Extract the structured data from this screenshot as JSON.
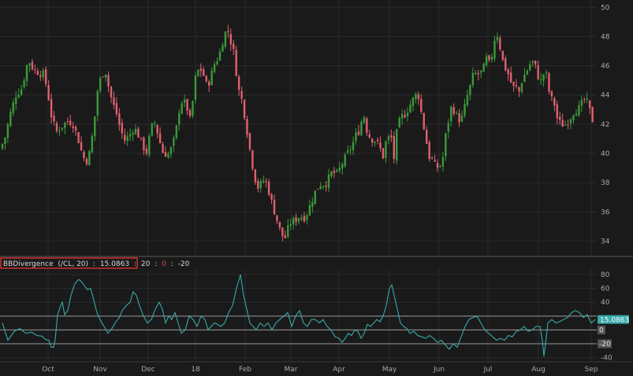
{
  "colors": {
    "background": "#1a1a1a",
    "grid": "#2a2a2a",
    "up": "#3a9a3a",
    "down": "#e06070",
    "indicator": "#3aa8a8",
    "level_line": "#9a9a9a",
    "study_box": "#d03030",
    "current_value_bg": "#3aa8a8"
  },
  "study": {
    "name": "BBDivergence",
    "params": "(/CL, 20)",
    "values": [
      "15.0863",
      "20",
      "0",
      "-20"
    ],
    "value_colors": [
      "#d8d8d8",
      "#d8d8d8",
      "#e04040",
      "#d8d8d8"
    ]
  },
  "chart_data": [
    {
      "type": "candlestick",
      "x_labels": [
        "Oct",
        "Nov",
        "Dec",
        "18",
        "Feb",
        "Mar",
        "Apr",
        "May",
        "Jun",
        "Jul",
        "Aug",
        "Sep"
      ],
      "y_ticks": [
        34,
        36,
        38,
        40,
        42,
        44,
        46,
        48,
        50
      ],
      "ylim": [
        33,
        50.5
      ],
      "grid": true,
      "close_path": [
        [
          0,
          40.3
        ],
        [
          6,
          41.0
        ],
        [
          13,
          42.7
        ],
        [
          20,
          44.0
        ],
        [
          28,
          44.5
        ],
        [
          33,
          45.8
        ],
        [
          36,
          46.4
        ],
        [
          43,
          45.7
        ],
        [
          51,
          45.5
        ],
        [
          56,
          45.4
        ],
        [
          61,
          44.0
        ],
        [
          66,
          42.3
        ],
        [
          72,
          41.5
        ],
        [
          79,
          41.9
        ],
        [
          85,
          42.2
        ],
        [
          92,
          42.1
        ],
        [
          98,
          41.2
        ],
        [
          103,
          40.2
        ],
        [
          107,
          39.6
        ],
        [
          110,
          39.5
        ],
        [
          114,
          40.1
        ],
        [
          119,
          41.9
        ],
        [
          124,
          44.4
        ],
        [
          129,
          45.4
        ],
        [
          134,
          45.6
        ],
        [
          138,
          44.5
        ],
        [
          142,
          43.6
        ],
        [
          148,
          42.7
        ],
        [
          153,
          41.6
        ],
        [
          158,
          40.9
        ],
        [
          164,
          41.2
        ],
        [
          170,
          41.8
        ],
        [
          176,
          41.2
        ],
        [
          181,
          40.5
        ],
        [
          186,
          40.1
        ],
        [
          191,
          41.5
        ],
        [
          195,
          42.3
        ],
        [
          200,
          41.4
        ],
        [
          206,
          40.1
        ],
        [
          213,
          39.9
        ],
        [
          219,
          40.5
        ],
        [
          224,
          41.8
        ],
        [
          229,
          43.6
        ],
        [
          236,
          43.4
        ],
        [
          242,
          42.1
        ],
        [
          247,
          45.0
        ],
        [
          253,
          45.9
        ],
        [
          258,
          45.4
        ],
        [
          263,
          44.5
        ],
        [
          267,
          45.2
        ],
        [
          272,
          46.1
        ],
        [
          278,
          46.7
        ],
        [
          283,
          47.8
        ],
        [
          288,
          48.6
        ],
        [
          292,
          47.8
        ],
        [
          297,
          46.8
        ],
        [
          302,
          44.5
        ],
        [
          307,
          43.6
        ],
        [
          311,
          42.4
        ],
        [
          315,
          41.0
        ],
        [
          319,
          39.5
        ],
        [
          322,
          38.8
        ],
        [
          326,
          37.6
        ],
        [
          331,
          37.9
        ],
        [
          336,
          38.3
        ],
        [
          341,
          37.4
        ],
        [
          346,
          36.4
        ],
        [
          351,
          35.5
        ],
        [
          356,
          34.6
        ],
        [
          361,
          34.1
        ],
        [
          365,
          34.8
        ],
        [
          369,
          35.3
        ],
        [
          374,
          35.4
        ],
        [
          380,
          35.7
        ],
        [
          387,
          35.6
        ],
        [
          393,
          36.4
        ],
        [
          400,
          37.4
        ],
        [
          406,
          37.9
        ],
        [
          413,
          37.9
        ],
        [
          421,
          38.7
        ],
        [
          428,
          38.6
        ],
        [
          434,
          39.3
        ],
        [
          440,
          39.9
        ],
        [
          447,
          40.6
        ],
        [
          451,
          41.2
        ],
        [
          456,
          41.6
        ],
        [
          461,
          42.8
        ],
        [
          466,
          41.4
        ],
        [
          471,
          41.0
        ],
        [
          476,
          40.9
        ],
        [
          481,
          40.5
        ],
        [
          486,
          39.8
        ],
        [
          490,
          40.9
        ],
        [
          496,
          41.2
        ],
        [
          500,
          39.6
        ],
        [
          504,
          41.8
        ],
        [
          509,
          42.5
        ],
        [
          514,
          42.7
        ],
        [
          520,
          43.3
        ],
        [
          525,
          43.8
        ],
        [
          530,
          44.2
        ],
        [
          535,
          42.6
        ],
        [
          540,
          41.1
        ],
        [
          544,
          39.8
        ],
        [
          549,
          39.5
        ],
        [
          553,
          39.0
        ],
        [
          557,
          39.1
        ],
        [
          561,
          39.3
        ],
        [
          564,
          40.8
        ],
        [
          568,
          42.0
        ],
        [
          573,
          43.3
        ],
        [
          577,
          42.8
        ],
        [
          582,
          42.3
        ],
        [
          587,
          42.5
        ],
        [
          591,
          43.6
        ],
        [
          596,
          44.5
        ],
        [
          601,
          45.5
        ],
        [
          606,
          45.4
        ],
        [
          612,
          45.6
        ],
        [
          617,
          46.5
        ],
        [
          622,
          46.0
        ],
        [
          627,
          47.8
        ],
        [
          632,
          48.2
        ],
        [
          636,
          46.6
        ],
        [
          642,
          45.7
        ],
        [
          646,
          45.3
        ],
        [
          650,
          44.5
        ],
        [
          655,
          44.5
        ],
        [
          659,
          44.2
        ],
        [
          663,
          45.2
        ],
        [
          668,
          45.6
        ],
        [
          672,
          46.1
        ],
        [
          677,
          46.3
        ],
        [
          681,
          45.6
        ],
        [
          685,
          44.8
        ],
        [
          690,
          45.5
        ],
        [
          694,
          45.3
        ],
        [
          698,
          43.6
        ],
        [
          702,
          43.8
        ],
        [
          706,
          42.5
        ],
        [
          710,
          42.1
        ],
        [
          716,
          41.9
        ],
        [
          722,
          42.3
        ],
        [
          728,
          42.9
        ],
        [
          735,
          43.1
        ],
        [
          741,
          43.7
        ],
        [
          746,
          43.4
        ],
        [
          751,
          42.3
        ],
        [
          755,
          42.1
        ]
      ]
    },
    {
      "type": "line",
      "series_label": "BBDivergence (/CL, 20)",
      "x_labels": [
        "Oct",
        "Nov",
        "Dec",
        "18",
        "Feb",
        "Mar",
        "Apr",
        "May",
        "Jun",
        "Jul",
        "Aug",
        "Sep"
      ],
      "y_ticks": [
        -40,
        -20,
        0,
        20,
        40,
        60,
        80
      ],
      "ylim": [
        -45,
        88
      ],
      "levels": [
        20,
        0,
        -20
      ],
      "current_value": 15.0863,
      "current_value_label": "15.0863",
      "points": [
        [
          3,
          10
        ],
        [
          10,
          -15
        ],
        [
          18,
          -2
        ],
        [
          25,
          2
        ],
        [
          33,
          -5
        ],
        [
          40,
          -3
        ],
        [
          47,
          -8
        ],
        [
          53,
          -9
        ],
        [
          58,
          -14
        ],
        [
          62,
          -15
        ],
        [
          65,
          -25
        ],
        [
          68,
          -25
        ],
        [
          70,
          -14
        ],
        [
          73,
          22
        ],
        [
          77,
          35
        ],
        [
          79,
          40
        ],
        [
          82,
          22
        ],
        [
          86,
          28
        ],
        [
          90,
          50
        ],
        [
          95,
          67
        ],
        [
          100,
          73
        ],
        [
          103,
          70
        ],
        [
          107,
          64
        ],
        [
          111,
          58
        ],
        [
          115,
          60
        ],
        [
          119,
          43
        ],
        [
          123,
          25
        ],
        [
          127,
          15
        ],
        [
          132,
          5
        ],
        [
          137,
          -5
        ],
        [
          142,
          2
        ],
        [
          147,
          12
        ],
        [
          151,
          17
        ],
        [
          155,
          28
        ],
        [
          160,
          35
        ],
        [
          165,
          40
        ],
        [
          169,
          55
        ],
        [
          173,
          50
        ],
        [
          177,
          35
        ],
        [
          182,
          20
        ],
        [
          187,
          10
        ],
        [
          192,
          15
        ],
        [
          197,
          30
        ],
        [
          202,
          40
        ],
        [
          206,
          30
        ],
        [
          210,
          10
        ],
        [
          214,
          20
        ],
        [
          218,
          15
        ],
        [
          222,
          25
        ],
        [
          226,
          10
        ],
        [
          230,
          -5
        ],
        [
          235,
          0
        ],
        [
          240,
          20
        ],
        [
          245,
          15
        ],
        [
          250,
          5
        ],
        [
          255,
          20
        ],
        [
          260,
          15
        ],
        [
          264,
          0
        ],
        [
          268,
          5
        ],
        [
          272,
          10
        ],
        [
          276,
          8
        ],
        [
          280,
          5
        ],
        [
          285,
          10
        ],
        [
          290,
          25
        ],
        [
          295,
          35
        ],
        [
          300,
          60
        ],
        [
          305,
          80
        ],
        [
          309,
          50
        ],
        [
          313,
          30
        ],
        [
          317,
          10
        ],
        [
          321,
          5
        ],
        [
          325,
          0
        ],
        [
          330,
          10
        ],
        [
          335,
          5
        ],
        [
          340,
          10
        ],
        [
          345,
          0
        ],
        [
          350,
          10
        ],
        [
          355,
          15
        ],
        [
          360,
          20
        ],
        [
          365,
          25
        ],
        [
          370,
          5
        ],
        [
          375,
          20
        ],
        [
          380,
          28
        ],
        [
          385,
          10
        ],
        [
          390,
          5
        ],
        [
          395,
          15
        ],
        [
          400,
          15
        ],
        [
          405,
          10
        ],
        [
          410,
          15
        ],
        [
          415,
          5
        ],
        [
          420,
          0
        ],
        [
          425,
          -10
        ],
        [
          430,
          -12
        ],
        [
          434,
          -18
        ],
        [
          438,
          -12
        ],
        [
          442,
          -5
        ],
        [
          446,
          -8
        ],
        [
          450,
          0
        ],
        [
          454,
          -2
        ],
        [
          458,
          -12
        ],
        [
          462,
          -5
        ],
        [
          466,
          8
        ],
        [
          470,
          5
        ],
        [
          474,
          10
        ],
        [
          478,
          15
        ],
        [
          482,
          12
        ],
        [
          486,
          20
        ],
        [
          490,
          35
        ],
        [
          494,
          60
        ],
        [
          497,
          65
        ],
        [
          500,
          50
        ],
        [
          504,
          30
        ],
        [
          508,
          10
        ],
        [
          512,
          5
        ],
        [
          516,
          2
        ],
        [
          520,
          -5
        ],
        [
          525,
          -2
        ],
        [
          530,
          -8
        ],
        [
          535,
          -10
        ],
        [
          540,
          -12
        ],
        [
          545,
          -8
        ],
        [
          550,
          -12
        ],
        [
          555,
          -18
        ],
        [
          560,
          -15
        ],
        [
          565,
          -22
        ],
        [
          570,
          -28
        ],
        [
          575,
          -20
        ],
        [
          580,
          -25
        ],
        [
          585,
          -10
        ],
        [
          590,
          5
        ],
        [
          595,
          15
        ],
        [
          600,
          18
        ],
        [
          605,
          20
        ],
        [
          610,
          10
        ],
        [
          615,
          0
        ],
        [
          620,
          -5
        ],
        [
          625,
          -10
        ],
        [
          630,
          -15
        ],
        [
          635,
          -12
        ],
        [
          640,
          -15
        ],
        [
          645,
          -8
        ],
        [
          650,
          -10
        ],
        [
          655,
          -2
        ],
        [
          660,
          0
        ],
        [
          665,
          5
        ],
        [
          670,
          -2
        ],
        [
          675,
          0
        ],
        [
          680,
          5
        ],
        [
          685,
          5
        ],
        [
          688,
          -15
        ],
        [
          690,
          -38
        ],
        [
          692,
          -20
        ],
        [
          695,
          10
        ],
        [
          700,
          15
        ],
        [
          705,
          10
        ],
        [
          710,
          12
        ],
        [
          715,
          15
        ],
        [
          720,
          18
        ],
        [
          725,
          25
        ],
        [
          730,
          28
        ],
        [
          735,
          25
        ],
        [
          740,
          18
        ],
        [
          745,
          22
        ],
        [
          750,
          10
        ],
        [
          755,
          15
        ]
      ]
    }
  ]
}
